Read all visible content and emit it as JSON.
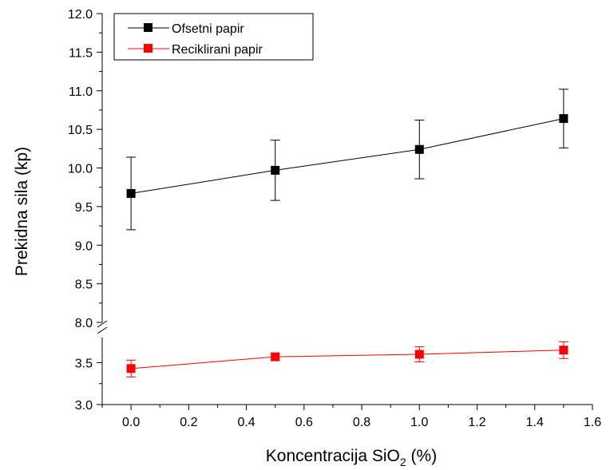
{
  "chart_data": {
    "type": "line",
    "xlabel": "Koncentracija SiO",
    "xlabel_sub": "2",
    "xlabel_suffix": " (%)",
    "ylabel": "Prekidna sila (kp)",
    "xlim": [
      -0.1,
      1.6
    ],
    "y_axis_broken": true,
    "y_segments": [
      {
        "range": [
          3.0,
          3.8
        ],
        "ticks": [
          3.0,
          3.5
        ]
      },
      {
        "range": [
          8.0,
          12.0
        ],
        "ticks": [
          8.0,
          8.5,
          9.0,
          9.5,
          10.0,
          10.5,
          11.0,
          11.5,
          12.0
        ]
      }
    ],
    "x": [
      0.0,
      0.5,
      1.0,
      1.5
    ],
    "x_ticks": [
      0.0,
      0.2,
      0.4,
      0.6,
      0.8,
      1.0,
      1.2,
      1.4,
      1.6
    ],
    "legend_placement": "top-left",
    "series": [
      {
        "name": "Ofsetni papir",
        "color": "#000000",
        "values": [
          9.67,
          9.97,
          10.24,
          10.64
        ],
        "errors": [
          0.47,
          0.39,
          0.38,
          0.38
        ]
      },
      {
        "name": "Reciklirani papir",
        "color": "#ff0000",
        "values": [
          3.43,
          3.57,
          3.6,
          3.65
        ],
        "errors": [
          0.1,
          0.04,
          0.09,
          0.1
        ]
      }
    ]
  }
}
